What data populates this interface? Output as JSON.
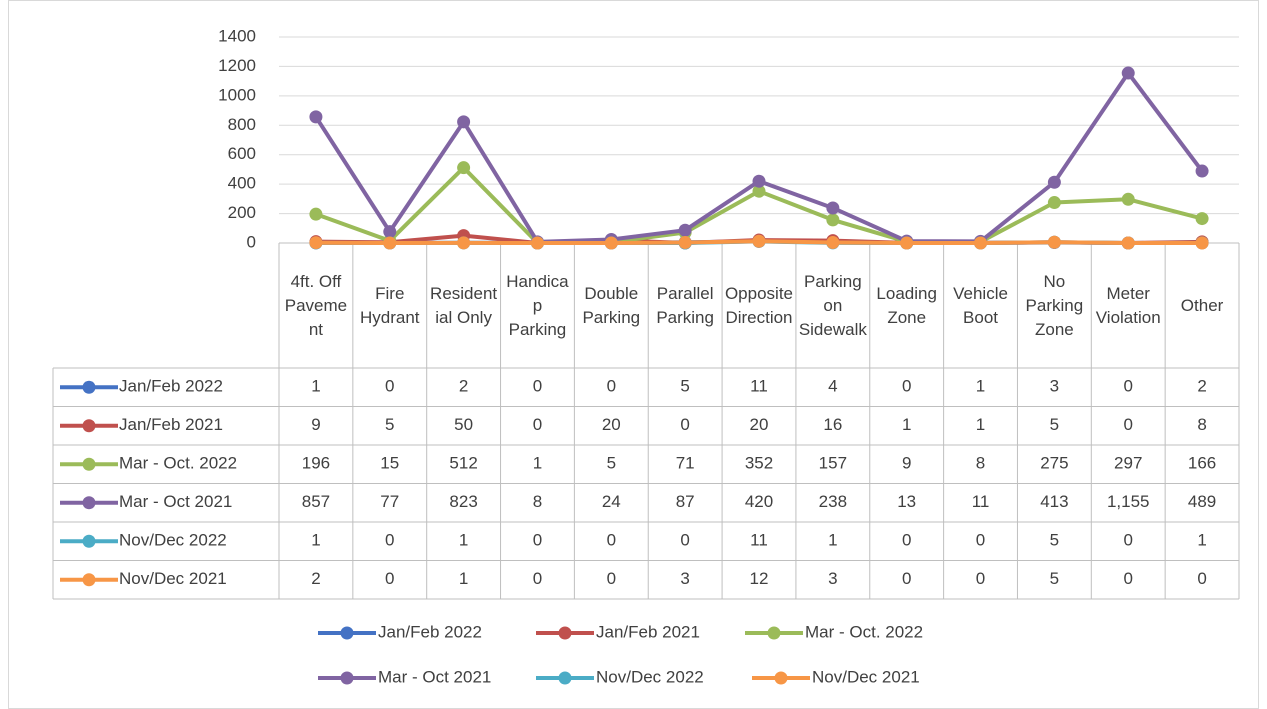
{
  "chart_data": {
    "type": "line",
    "categories": [
      "4ft. Off Pavement",
      "Fire Hydrant",
      "Residential Only",
      "Handicap Parking",
      "Double Parking",
      "Parallel Parking",
      "Opposite Direction",
      "Parking on Sidewalk",
      "Loading Zone",
      "Vehicle Boot",
      "No Parking Zone",
      "Meter Violation",
      "Other"
    ],
    "series": [
      {
        "name": "Jan/Feb 2022",
        "color": "#4472c4",
        "values": [
          1,
          0,
          2,
          0,
          0,
          5,
          11,
          4,
          0,
          1,
          3,
          0,
          2
        ]
      },
      {
        "name": "Jan/Feb 2021",
        "color": "#c0504d",
        "values": [
          9,
          5,
          50,
          0,
          20,
          0,
          20,
          16,
          1,
          1,
          5,
          0,
          8
        ]
      },
      {
        "name": "Mar - Oct. 2022",
        "color": "#9bbb59",
        "values": [
          196,
          15,
          512,
          1,
          5,
          71,
          352,
          157,
          9,
          8,
          275,
          297,
          166
        ]
      },
      {
        "name": "Mar - Oct 2021",
        "color": "#8064a2",
        "values": [
          857,
          77,
          823,
          8,
          24,
          87,
          420,
          238,
          13,
          11,
          413,
          1155,
          489
        ],
        "value_labels": [
          "857",
          "77",
          "823",
          "8",
          "24",
          "87",
          "420",
          "238",
          "13",
          "11",
          "413",
          "1,155",
          "489"
        ]
      },
      {
        "name": "Nov/Dec 2022",
        "color": "#4bacc6",
        "values": [
          1,
          0,
          1,
          0,
          0,
          0,
          11,
          1,
          0,
          0,
          5,
          0,
          1
        ]
      },
      {
        "name": "Nov/Dec 2021",
        "color": "#f79646",
        "values": [
          2,
          0,
          1,
          0,
          0,
          3,
          12,
          3,
          0,
          0,
          5,
          0,
          0
        ]
      }
    ],
    "ylim": [
      0,
      1400
    ],
    "yticks": [
      0,
      200,
      400,
      600,
      800,
      1000,
      1200,
      1400
    ],
    "grid": true,
    "legend": "bottom"
  }
}
